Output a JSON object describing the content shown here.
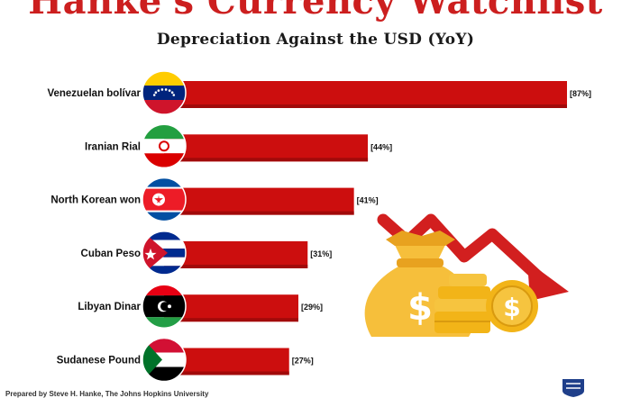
{
  "title": "Hanke's Currency Watchlist",
  "subtitle": "Depreciation Against the USD (YoY)",
  "footer": "Prepared by Steve H. Hanke, The Johns Hopkins University",
  "colors": {
    "title": "#cc1f1f",
    "bar": "#cc0e0e",
    "bar_shade": "#a10a0a",
    "money_bag": "#f6bf3b",
    "coins": "#f2b418",
    "arrow": "#d21f1f"
  },
  "chart_data": {
    "type": "bar",
    "orientation": "horizontal",
    "title": "Depreciation Against the USD (YoY)",
    "categories": [
      "Venezuelan bolívar",
      "Iranian Rial",
      "North Korean won",
      "Cuban Peso",
      "Libyan Dinar",
      "Sudanese Pound"
    ],
    "values": [
      87,
      44,
      41,
      31,
      29,
      27
    ],
    "data_labels": [
      "[87%]",
      "[44%]",
      "[41%]",
      "[31%]",
      "[29%]",
      "[27%]"
    ],
    "flags": [
      "venezuela-flag-icon",
      "iran-flag-icon",
      "north-korea-flag-icon",
      "cuba-flag-icon",
      "libya-flag-icon",
      "sudan-flag-icon"
    ],
    "xlim": [
      0,
      87
    ],
    "grid": false,
    "legend": "none"
  },
  "decoration": {
    "icons": [
      "falling-arrow-icon",
      "money-bag-icon",
      "dollar-sign-icon",
      "coin-stack-icon",
      "dollar-coin-icon",
      "university-shield-icon"
    ],
    "bag_symbol": "$",
    "coin_symbol": "$"
  }
}
